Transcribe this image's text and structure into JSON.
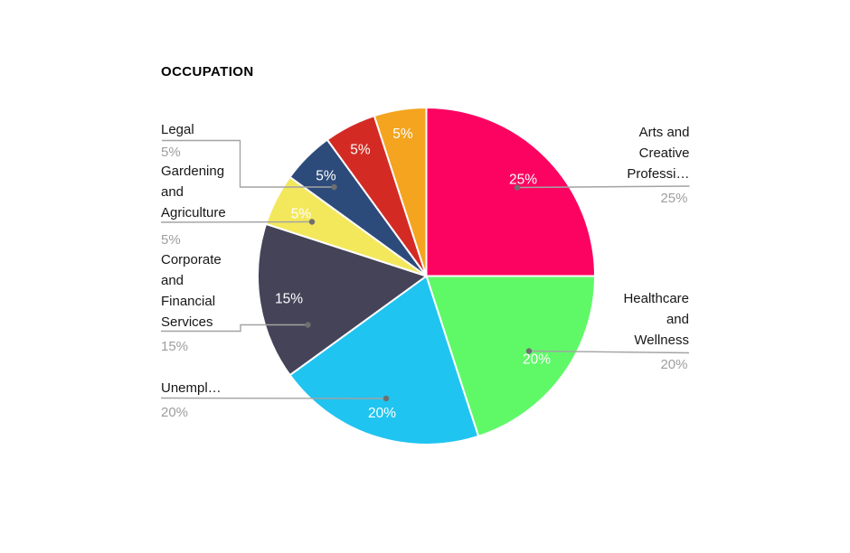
{
  "chart_data": {
    "type": "pie",
    "title": "OCCUPATION",
    "unit": "%",
    "direction": "clockwise",
    "start_angle_deg": 0,
    "legend_position": "none",
    "labels_style": "outside callouts with leader lines; percent values shown inside slices",
    "slices": [
      {
        "label": "Arts and Creative Professi…",
        "label_lines": [
          "Arts and",
          "Creative",
          "Professi…"
        ],
        "value": 25,
        "pct_text": "25%",
        "outside_pct_text": "25%",
        "color": "#fc0361",
        "callout": true,
        "side": "right"
      },
      {
        "label": "Healthcare and Wellness",
        "label_lines": [
          "Healthcare",
          "and",
          "Wellness"
        ],
        "value": 20,
        "pct_text": "20%",
        "outside_pct_text": "20%",
        "color": "#5ff968",
        "callout": true,
        "side": "right"
      },
      {
        "label": "Unempl…",
        "label_lines": [
          "Unempl…"
        ],
        "value": 20,
        "pct_text": "20%",
        "outside_pct_text": "20%",
        "color": "#20c4f0",
        "callout": true,
        "side": "left"
      },
      {
        "label": "Corporate and Financial Services",
        "label_lines": [
          "Corporate",
          "and",
          "Financial",
          "Services"
        ],
        "value": 15,
        "pct_text": "15%",
        "outside_pct_text": "15%",
        "color": "#454358",
        "callout": true,
        "side": "left"
      },
      {
        "label": "Gardening and Agriculture",
        "label_lines": [
          "Gardening",
          "and",
          "Agriculture"
        ],
        "value": 5,
        "pct_text": "5%",
        "outside_pct_text": "5%",
        "color": "#f3e85c",
        "callout": true,
        "side": "left"
      },
      {
        "label": "Legal",
        "label_lines": [
          "Legal"
        ],
        "value": 5,
        "pct_text": "5%",
        "outside_pct_text": "5%",
        "color": "#2d4b7a",
        "callout": true,
        "side": "left"
      },
      {
        "label": "",
        "label_lines": [],
        "value": 5,
        "pct_text": "5%",
        "outside_pct_text": "",
        "color": "#d32b24",
        "callout": false,
        "side": "none"
      },
      {
        "label": "",
        "label_lines": [],
        "value": 5,
        "pct_text": "5%",
        "outside_pct_text": "",
        "color": "#f4a41f",
        "callout": false,
        "side": "none"
      }
    ]
  },
  "styles": {
    "background": "#ffffff",
    "title_color": "#000000",
    "label_color": "#171717",
    "pct_label_color": "#9e9e9e",
    "leader_line_color": "#a3a3a3",
    "leader_dot_color": "#6f6f6f",
    "slice_border_color": "#ffffff",
    "slice_text_color": "#ffffff"
  }
}
